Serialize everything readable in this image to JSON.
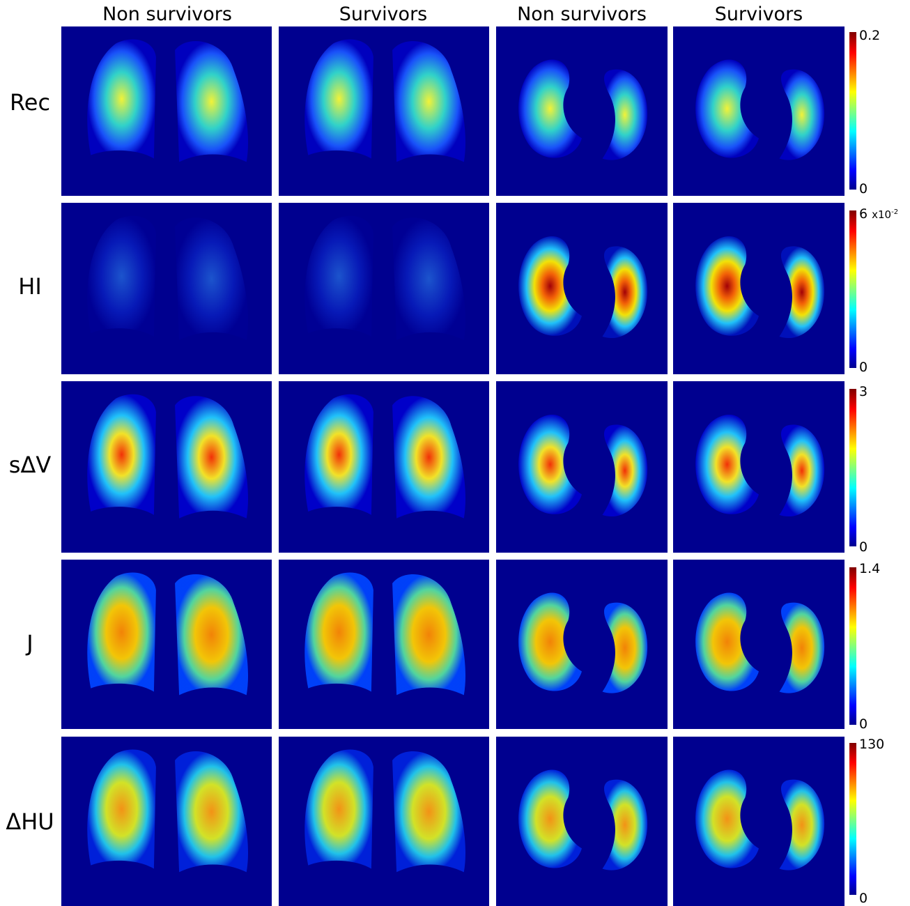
{
  "columns": [
    "Non survivors",
    "Survivors",
    "Non survivors",
    "Survivors"
  ],
  "rows": [
    {
      "label": "Rec",
      "cbar_max": "0.2",
      "cbar_min": "0",
      "cbar_exp": "",
      "cbar_exp_power": ""
    },
    {
      "label": "HI",
      "cbar_max": "6",
      "cbar_min": "0",
      "cbar_exp": "x10",
      "cbar_exp_power": "-2"
    },
    {
      "label": "sΔV",
      "cbar_max": "3",
      "cbar_min": "0",
      "cbar_exp": "",
      "cbar_exp_power": ""
    },
    {
      "label": "J",
      "cbar_max": "1.4",
      "cbar_min": "0",
      "cbar_exp": "",
      "cbar_exp_power": ""
    },
    {
      "label": "ΔHU",
      "cbar_max": "130",
      "cbar_min": "0",
      "cbar_exp": "",
      "cbar_exp_power": ""
    }
  ],
  "colormap": {
    "low": "#00008f",
    "mid_low": "#00ffff",
    "mid": "#ffff00",
    "high": "#ff0000",
    "max": "#800000"
  }
}
